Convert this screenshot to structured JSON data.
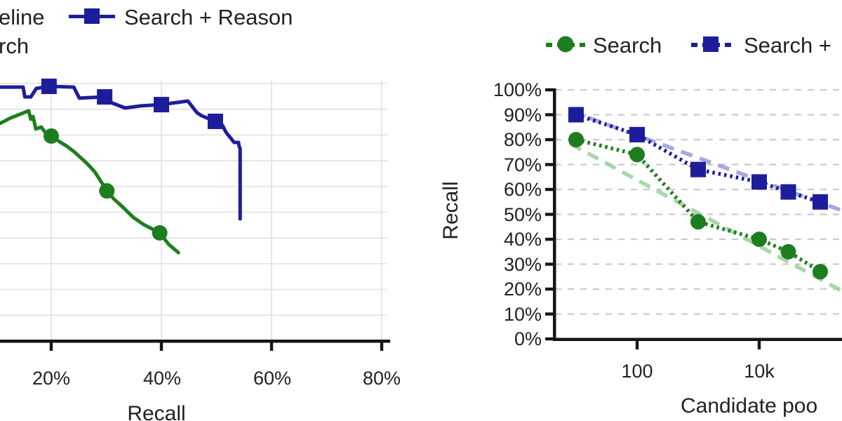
{
  "chart_data": [
    {
      "type": "line",
      "subtype": "precision-recall-curve",
      "xlabel": "Recall",
      "x_ticks": [
        {
          "label": "20%",
          "value": 20
        },
        {
          "label": "40%",
          "value": 40
        },
        {
          "label": "60%",
          "value": 60
        },
        {
          "label": "80%",
          "value": 80
        }
      ],
      "xlim_visible": [
        10.7,
        81.6
      ],
      "ylim": [
        0,
        100
      ],
      "grid": true,
      "y_axis_labels_visible": false,
      "legend": {
        "position": "top-left (cropped at image edge)",
        "items": [
          {
            "text": "eline",
            "marker": "none-visible",
            "color": "#222222"
          },
          {
            "text": "Search + Reason",
            "marker": "square",
            "color": "#1d1d9c"
          },
          {
            "text": "rch",
            "marker": "none-visible",
            "color": "#222222"
          }
        ]
      },
      "series": [
        {
          "name": "Search + Reason",
          "color": "#1d1d9c",
          "marker": "square",
          "line_style": "solid",
          "points": [
            [
              10.7,
              98.6
            ],
            [
              14.9,
              98.6
            ],
            [
              15.2,
              94.8
            ],
            [
              16.3,
              94.8
            ],
            [
              17.3,
              98.1
            ],
            [
              19.6,
              98.9
            ],
            [
              24.1,
              98.6
            ],
            [
              25.1,
              94.3
            ],
            [
              27.5,
              94.6
            ],
            [
              29.7,
              94.8
            ],
            [
              31.1,
              92.4
            ],
            [
              33.4,
              90.5
            ],
            [
              36.2,
              91.3
            ],
            [
              40.0,
              91.8
            ],
            [
              44.8,
              93.2
            ],
            [
              45.4,
              91.6
            ],
            [
              46.0,
              89.9
            ],
            [
              46.5,
              88.6
            ],
            [
              47.3,
              87.5
            ],
            [
              48.3,
              86.6
            ],
            [
              49.8,
              85.3
            ],
            [
              51.1,
              83.7
            ],
            [
              51.7,
              81.2
            ],
            [
              52.2,
              79.8
            ],
            [
              52.7,
              78.5
            ],
            [
              53.2,
              77.1
            ],
            [
              54.0,
              77.1
            ],
            [
              54.1,
              75.7
            ],
            [
              54.3,
              74.7
            ],
            [
              54.3,
              47.4
            ]
          ],
          "markers_at": [
            [
              19.6,
              98.9
            ],
            [
              29.7,
              94.8
            ],
            [
              40.0,
              91.8
            ],
            [
              49.8,
              85.3
            ]
          ]
        },
        {
          "name": "Search",
          "color": "#1e7d1e",
          "marker": "circle",
          "line_style": "solid",
          "points": [
            [
              10.7,
              84.5
            ],
            [
              12.6,
              86.6
            ],
            [
              15.9,
              89.4
            ],
            [
              16.3,
              86.1
            ],
            [
              16.7,
              87.2
            ],
            [
              17.2,
              82.3
            ],
            [
              18.2,
              83.1
            ],
            [
              19.0,
              80.7
            ],
            [
              20.0,
              79.6
            ],
            [
              21.5,
              77.4
            ],
            [
              22.8,
              75.7
            ],
            [
              24.1,
              73.6
            ],
            [
              25.4,
              71.1
            ],
            [
              26.6,
              68.7
            ],
            [
              27.9,
              65.7
            ],
            [
              28.9,
              62.4
            ],
            [
              30.1,
              58.3
            ],
            [
              31.3,
              55.3
            ],
            [
              33.0,
              52.0
            ],
            [
              34.9,
              48.0
            ],
            [
              36.8,
              45.2
            ],
            [
              39.7,
              42.0
            ],
            [
              41.3,
              37.6
            ],
            [
              43.1,
              34.3
            ]
          ],
          "markers_at": [
            [
              20.0,
              79.6
            ],
            [
              30.1,
              58.3
            ],
            [
              39.7,
              42.0
            ]
          ]
        }
      ]
    },
    {
      "type": "line",
      "xlabel": "Candidate poo",
      "ylabel": "Recall",
      "xscale": "log",
      "x_ticks": [
        {
          "label": "100",
          "value": 100
        },
        {
          "label": "10k",
          "value": 10000
        }
      ],
      "y_ticks": [
        {
          "label": "100%",
          "value": 100
        },
        {
          "label": "90%",
          "value": 90
        },
        {
          "label": "80%",
          "value": 80
        },
        {
          "label": "70%",
          "value": 70
        },
        {
          "label": "60%",
          "value": 60
        },
        {
          "label": "50%",
          "value": 50
        },
        {
          "label": "40%",
          "value": 40
        },
        {
          "label": "30%",
          "value": 30
        },
        {
          "label": "20%",
          "value": 20
        },
        {
          "label": "10%",
          "value": 10
        },
        {
          "label": "0%",
          "value": 0
        }
      ],
      "ylim": [
        0,
        100
      ],
      "grid": "dashed-horizontal",
      "legend": {
        "position": "top (second entry cropped at image edge)",
        "items": [
          {
            "text": "Search",
            "marker": "circle",
            "color": "#1e7d1e"
          },
          {
            "text": "Search +",
            "marker": "square",
            "color": "#1d1d9c"
          }
        ]
      },
      "series": [
        {
          "name": "Search",
          "color": "#1e7d1e",
          "marker": "circle",
          "line_style": "dotted",
          "x": [
            10,
            100,
            1000,
            10000,
            30000,
            100000
          ],
          "y": [
            80,
            74,
            47,
            40,
            35,
            27
          ]
        },
        {
          "name": "Search + Reason",
          "color": "#1d1d9c",
          "marker": "square",
          "line_style": "dotted",
          "x": [
            10,
            100,
            1000,
            10000,
            30000,
            100000
          ],
          "y": [
            90,
            82,
            68,
            63,
            59,
            55
          ]
        }
      ],
      "trend_lines": [
        {
          "name": "search-reason-fit",
          "color": "#9a9ade",
          "from": [
            10,
            91.5
          ],
          "to": [
            229000,
            51.5
          ]
        },
        {
          "name": "search-fit",
          "color": "#9ccf9c",
          "from": [
            10,
            78.3
          ],
          "to": [
            229000,
            19.2
          ]
        }
      ]
    }
  ]
}
